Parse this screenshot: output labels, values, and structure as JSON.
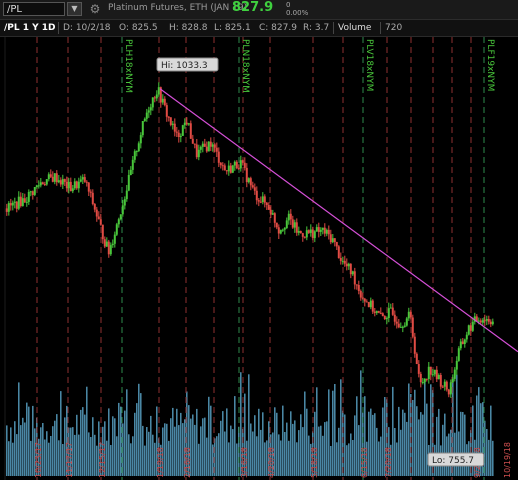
{
  "header": {
    "symbol": "/PL",
    "dropdown_glyph": "▼",
    "gear_glyph": "⚙",
    "description": "Platinum Futures, ETH (JAN 19)",
    "last_price": "827.9",
    "change_value": "0",
    "change_pct": "0.00%"
  },
  "toolbar": {
    "title": "/PL 1 Y 1D",
    "date": "D: 10/2/18",
    "open": "O: 825.5",
    "high": "H: 828.8",
    "low": "L: 825.1",
    "close": "C: 827.9",
    "range": "R: 3.7",
    "volume_label": "Volume",
    "volume_value": "720"
  },
  "colors": {
    "up": "#49c73b",
    "down": "#e14b44",
    "volume": "#4a87a4",
    "vline_red": "#8e3131",
    "vline_green": "#2e8a4b",
    "trendline": "#d44fd6"
  },
  "chart_data": {
    "type": "candlestick",
    "price_high_label": "Hi: 1033.3",
    "price_low_label": "Lo: 755.7",
    "price_range": [
      720,
      1070
    ],
    "price_path": [
      [
        0,
        927
      ],
      [
        0.04,
        936
      ],
      [
        0.07,
        950
      ],
      [
        0.1,
        955
      ],
      [
        0.13,
        945
      ],
      [
        0.16,
        952
      ],
      [
        0.18,
        928
      ],
      [
        0.2,
        900
      ],
      [
        0.21,
        888
      ],
      [
        0.23,
        918
      ],
      [
        0.25,
        950
      ],
      [
        0.27,
        985
      ],
      [
        0.29,
        1015
      ],
      [
        0.31,
        1033
      ],
      [
        0.33,
        1010
      ],
      [
        0.35,
        990
      ],
      [
        0.37,
        1005
      ],
      [
        0.39,
        975
      ],
      [
        0.42,
        985
      ],
      [
        0.45,
        960
      ],
      [
        0.48,
        968
      ],
      [
        0.51,
        940
      ],
      [
        0.54,
        928
      ],
      [
        0.56,
        908
      ],
      [
        0.58,
        918
      ],
      [
        0.6,
        905
      ],
      [
        0.62,
        905
      ],
      [
        0.65,
        907
      ],
      [
        0.67,
        900
      ],
      [
        0.69,
        880
      ],
      [
        0.71,
        870
      ],
      [
        0.73,
        850
      ],
      [
        0.75,
        840
      ],
      [
        0.77,
        830
      ],
      [
        0.79,
        835
      ],
      [
        0.81,
        825
      ],
      [
        0.83,
        832
      ],
      [
        0.85,
        770
      ],
      [
        0.87,
        785
      ],
      [
        0.89,
        775
      ],
      [
        0.91,
        765
      ],
      [
        0.93,
        800
      ],
      [
        0.95,
        820
      ],
      [
        0.97,
        830
      ],
      [
        1,
        828
      ]
    ],
    "date_labels": [
      "10/23/17",
      "11/17/17",
      "12/15/17",
      "1/19/18",
      "2/16/18",
      "3/16/18",
      "4/20/18",
      "5/18/18",
      "6/15/18",
      "7/20/18",
      "9/21/18",
      "10/19/18"
    ],
    "contract_labels": [
      "PLH18xNYM",
      "PLN18xNYM",
      "PLV18xNYM",
      "PLF19xNYM"
    ],
    "grid": false
  }
}
